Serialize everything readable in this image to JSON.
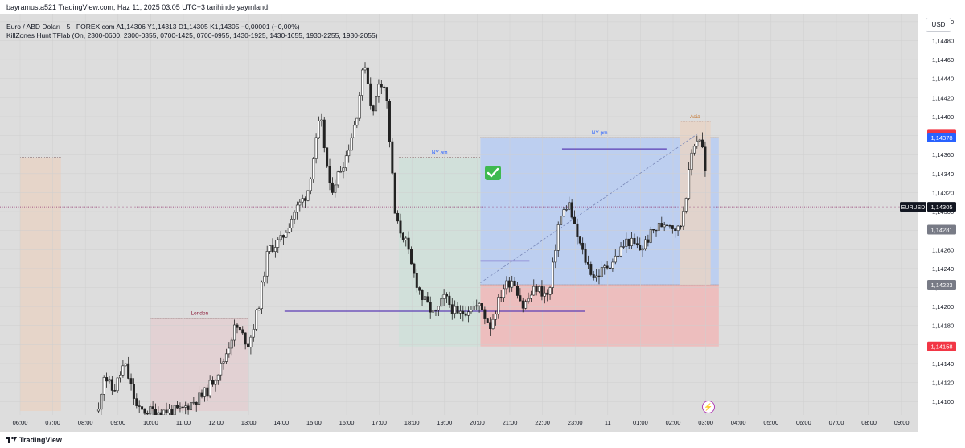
{
  "header": {
    "publish_line": "bayramusta521 TradingView.com, Haz 11, 2025 03:05 UTC+3 tarihinde yayınlandı",
    "symbol_line": "Euro / ABD Doları · 5 · FOREX.com  A1,14306  Y1,14313  D1,14305  K1,14305  −0,00001 (−0,00%)",
    "indicator_line": "KillZones Hunt TFlab (On, 2300-0600, 2300-0355, 0700-1425, 0700-0955, 1430-1925, 1430-1655, 1930-2255, 1930-2055)"
  },
  "footer": {
    "brand": "TradingView"
  },
  "currency_button": "USD",
  "colors": {
    "plot_bg": "#dddddd",
    "axis_bg": "#ffffff",
    "candle": "#222222",
    "ny_am_zone": "#cfe1d9",
    "ny_pm_zone": "#b7cdf3",
    "red_zone": "#f0b8b8",
    "london_zone": "#e3cfd1",
    "asia_zone": "#e8d3c5",
    "level_line": "#5b3db5",
    "red_label": "#f23645",
    "blue_label": "#2962ff",
    "dark_label": "#131722",
    "grey_label": "#787b86"
  },
  "chart_data": {
    "type": "candlestick",
    "symbol": "EURUSD",
    "timeframe": "5",
    "ylim": [
      1.1409,
      1.14505
    ],
    "y_ticks": [
      "1,14500",
      "1,14480",
      "1,14460",
      "1,14440",
      "1,14420",
      "1,14400",
      "1,14380",
      "1,14360",
      "1,14340",
      "1,14320",
      "1,14300",
      "1,14280",
      "1,14260",
      "1,14240",
      "1,14220",
      "1,14200",
      "1,14180",
      "1,14160",
      "1,14140",
      "1,14120",
      "1,14100"
    ],
    "x_labels": [
      {
        "t": 0,
        "label": "06:00"
      },
      {
        "t": 1,
        "label": "07:00"
      },
      {
        "t": 2,
        "label": "08:00"
      },
      {
        "t": 3,
        "label": "09:00"
      },
      {
        "t": 4,
        "label": "10:00"
      },
      {
        "t": 5,
        "label": "11:00"
      },
      {
        "t": 6,
        "label": "12:00"
      },
      {
        "t": 7,
        "label": "13:00"
      },
      {
        "t": 8,
        "label": "14:00"
      },
      {
        "t": 9,
        "label": "15:00"
      },
      {
        "t": 10,
        "label": "16:00"
      },
      {
        "t": 11,
        "label": "17:00"
      },
      {
        "t": 12,
        "label": "18:00"
      },
      {
        "t": 13,
        "label": "19:00"
      },
      {
        "t": 14,
        "label": "20:00"
      },
      {
        "t": 15,
        "label": "21:00"
      },
      {
        "t": 16,
        "label": "22:00"
      },
      {
        "t": 17,
        "label": "23:00"
      },
      {
        "t": 18,
        "label": "11"
      },
      {
        "t": 19,
        "label": "01:00"
      },
      {
        "t": 20,
        "label": "02:00"
      },
      {
        "t": 21,
        "label": "03:00"
      },
      {
        "t": 22,
        "label": "04:00"
      },
      {
        "t": 23,
        "label": "05:00"
      },
      {
        "t": 24,
        "label": "06:00"
      },
      {
        "t": 25,
        "label": "07:00"
      },
      {
        "t": 26,
        "label": "08:00"
      },
      {
        "t": 27,
        "label": "09:00"
      }
    ],
    "anchors": [
      [
        2.4,
        1.1409
      ],
      [
        2.55,
        1.1413
      ],
      [
        2.85,
        1.1411
      ],
      [
        3.2,
        1.1414
      ],
      [
        3.6,
        1.1409
      ],
      [
        4.9,
        1.1409
      ],
      [
        5.7,
        1.1411
      ],
      [
        6.2,
        1.1414
      ],
      [
        6.6,
        1.1418
      ],
      [
        7.0,
        1.1416
      ],
      [
        7.3,
        1.142
      ],
      [
        7.6,
        1.1426
      ],
      [
        8.0,
        1.1427
      ],
      [
        8.4,
        1.143
      ],
      [
        8.8,
        1.1432
      ],
      [
        9.0,
        1.1436
      ],
      [
        9.2,
        1.144
      ],
      [
        9.5,
        1.1432
      ],
      [
        10.0,
        1.1436
      ],
      [
        10.3,
        1.144
      ],
      [
        10.55,
        1.1446
      ],
      [
        10.8,
        1.144
      ],
      [
        11.0,
        1.1444
      ],
      [
        11.2,
        1.1443
      ],
      [
        11.5,
        1.1429
      ],
      [
        11.8,
        1.1427
      ],
      [
        12.0,
        1.1424
      ],
      [
        12.3,
        1.1421
      ],
      [
        12.7,
        1.1419
      ],
      [
        13.0,
        1.1421
      ],
      [
        13.4,
        1.1419
      ],
      [
        13.8,
        1.142
      ],
      [
        14.1,
        1.142
      ],
      [
        14.4,
        1.1418
      ],
      [
        14.8,
        1.1422
      ],
      [
        15.1,
        1.1423
      ],
      [
        15.4,
        1.142
      ],
      [
        15.8,
        1.1422
      ],
      [
        16.2,
        1.1421
      ],
      [
        16.5,
        1.1429
      ],
      [
        16.8,
        1.1431
      ],
      [
        17.0,
        1.1428
      ],
      [
        17.3,
        1.1425
      ],
      [
        17.6,
        1.1423
      ],
      [
        17.9,
        1.1424
      ],
      [
        18.2,
        1.1425
      ],
      [
        18.6,
        1.1427
      ],
      [
        19.0,
        1.1426
      ],
      [
        19.4,
        1.1428
      ],
      [
        19.8,
        1.1429
      ],
      [
        20.2,
        1.1428
      ],
      [
        20.45,
        1.1433
      ],
      [
        20.6,
        1.1437
      ],
      [
        20.8,
        1.1438
      ],
      [
        20.95,
        1.1436
      ],
      [
        21.05,
        1.14305
      ]
    ],
    "current_price": "1,14305",
    "price_labels": [
      {
        "value": 1.14381,
        "text": "1,14381",
        "style": "red"
      },
      {
        "value": 1.14378,
        "text": "1,14378",
        "style": "blue"
      },
      {
        "value": 1.14305,
        "text": "1,14305",
        "style": "dark",
        "tag": "EURUSD"
      },
      {
        "value": 1.14281,
        "text": "1,14281",
        "style": "grey"
      },
      {
        "value": 1.14223,
        "text": "1,14223",
        "style": "grey"
      },
      {
        "value": 1.14158,
        "text": "1,14158",
        "style": "red"
      }
    ],
    "zones": [
      {
        "label": "",
        "t0": 0.0,
        "t1": 1.25,
        "top": 1.14357,
        "bottom": 1.1409,
        "color": "asia_zone"
      },
      {
        "label": "London",
        "t0": 4.0,
        "t1": 7.0,
        "top": 1.14188,
        "bottom": 1.1409,
        "color": "london_zone"
      },
      {
        "label": "NY am",
        "t0": 11.6,
        "t1": 14.1,
        "top": 1.14357,
        "bottom": 1.14158,
        "color": "ny_am_zone"
      },
      {
        "label": "NY pm",
        "t0": 14.1,
        "t1": 21.4,
        "top": 1.14378,
        "bottom": 1.14223,
        "color": "ny_pm_zone"
      },
      {
        "label": "",
        "t0": 14.1,
        "t1": 21.4,
        "top": 1.14223,
        "bottom": 1.14158,
        "color": "red_zone"
      },
      {
        "label": "Asia",
        "t0": 20.2,
        "t1": 21.15,
        "top": 1.14395,
        "bottom": 1.14223,
        "color": "asia_zone"
      }
    ],
    "levels": [
      {
        "t0": 8.1,
        "t1": 17.3,
        "value": 1.14195
      },
      {
        "t0": 14.1,
        "t1": 15.6,
        "value": 1.14248
      },
      {
        "t0": 16.6,
        "t1": 19.8,
        "value": 1.14366
      }
    ],
    "trendline": {
      "from": [
        14.1,
        1.14225
      ],
      "to": [
        20.8,
        1.14383
      ]
    }
  }
}
